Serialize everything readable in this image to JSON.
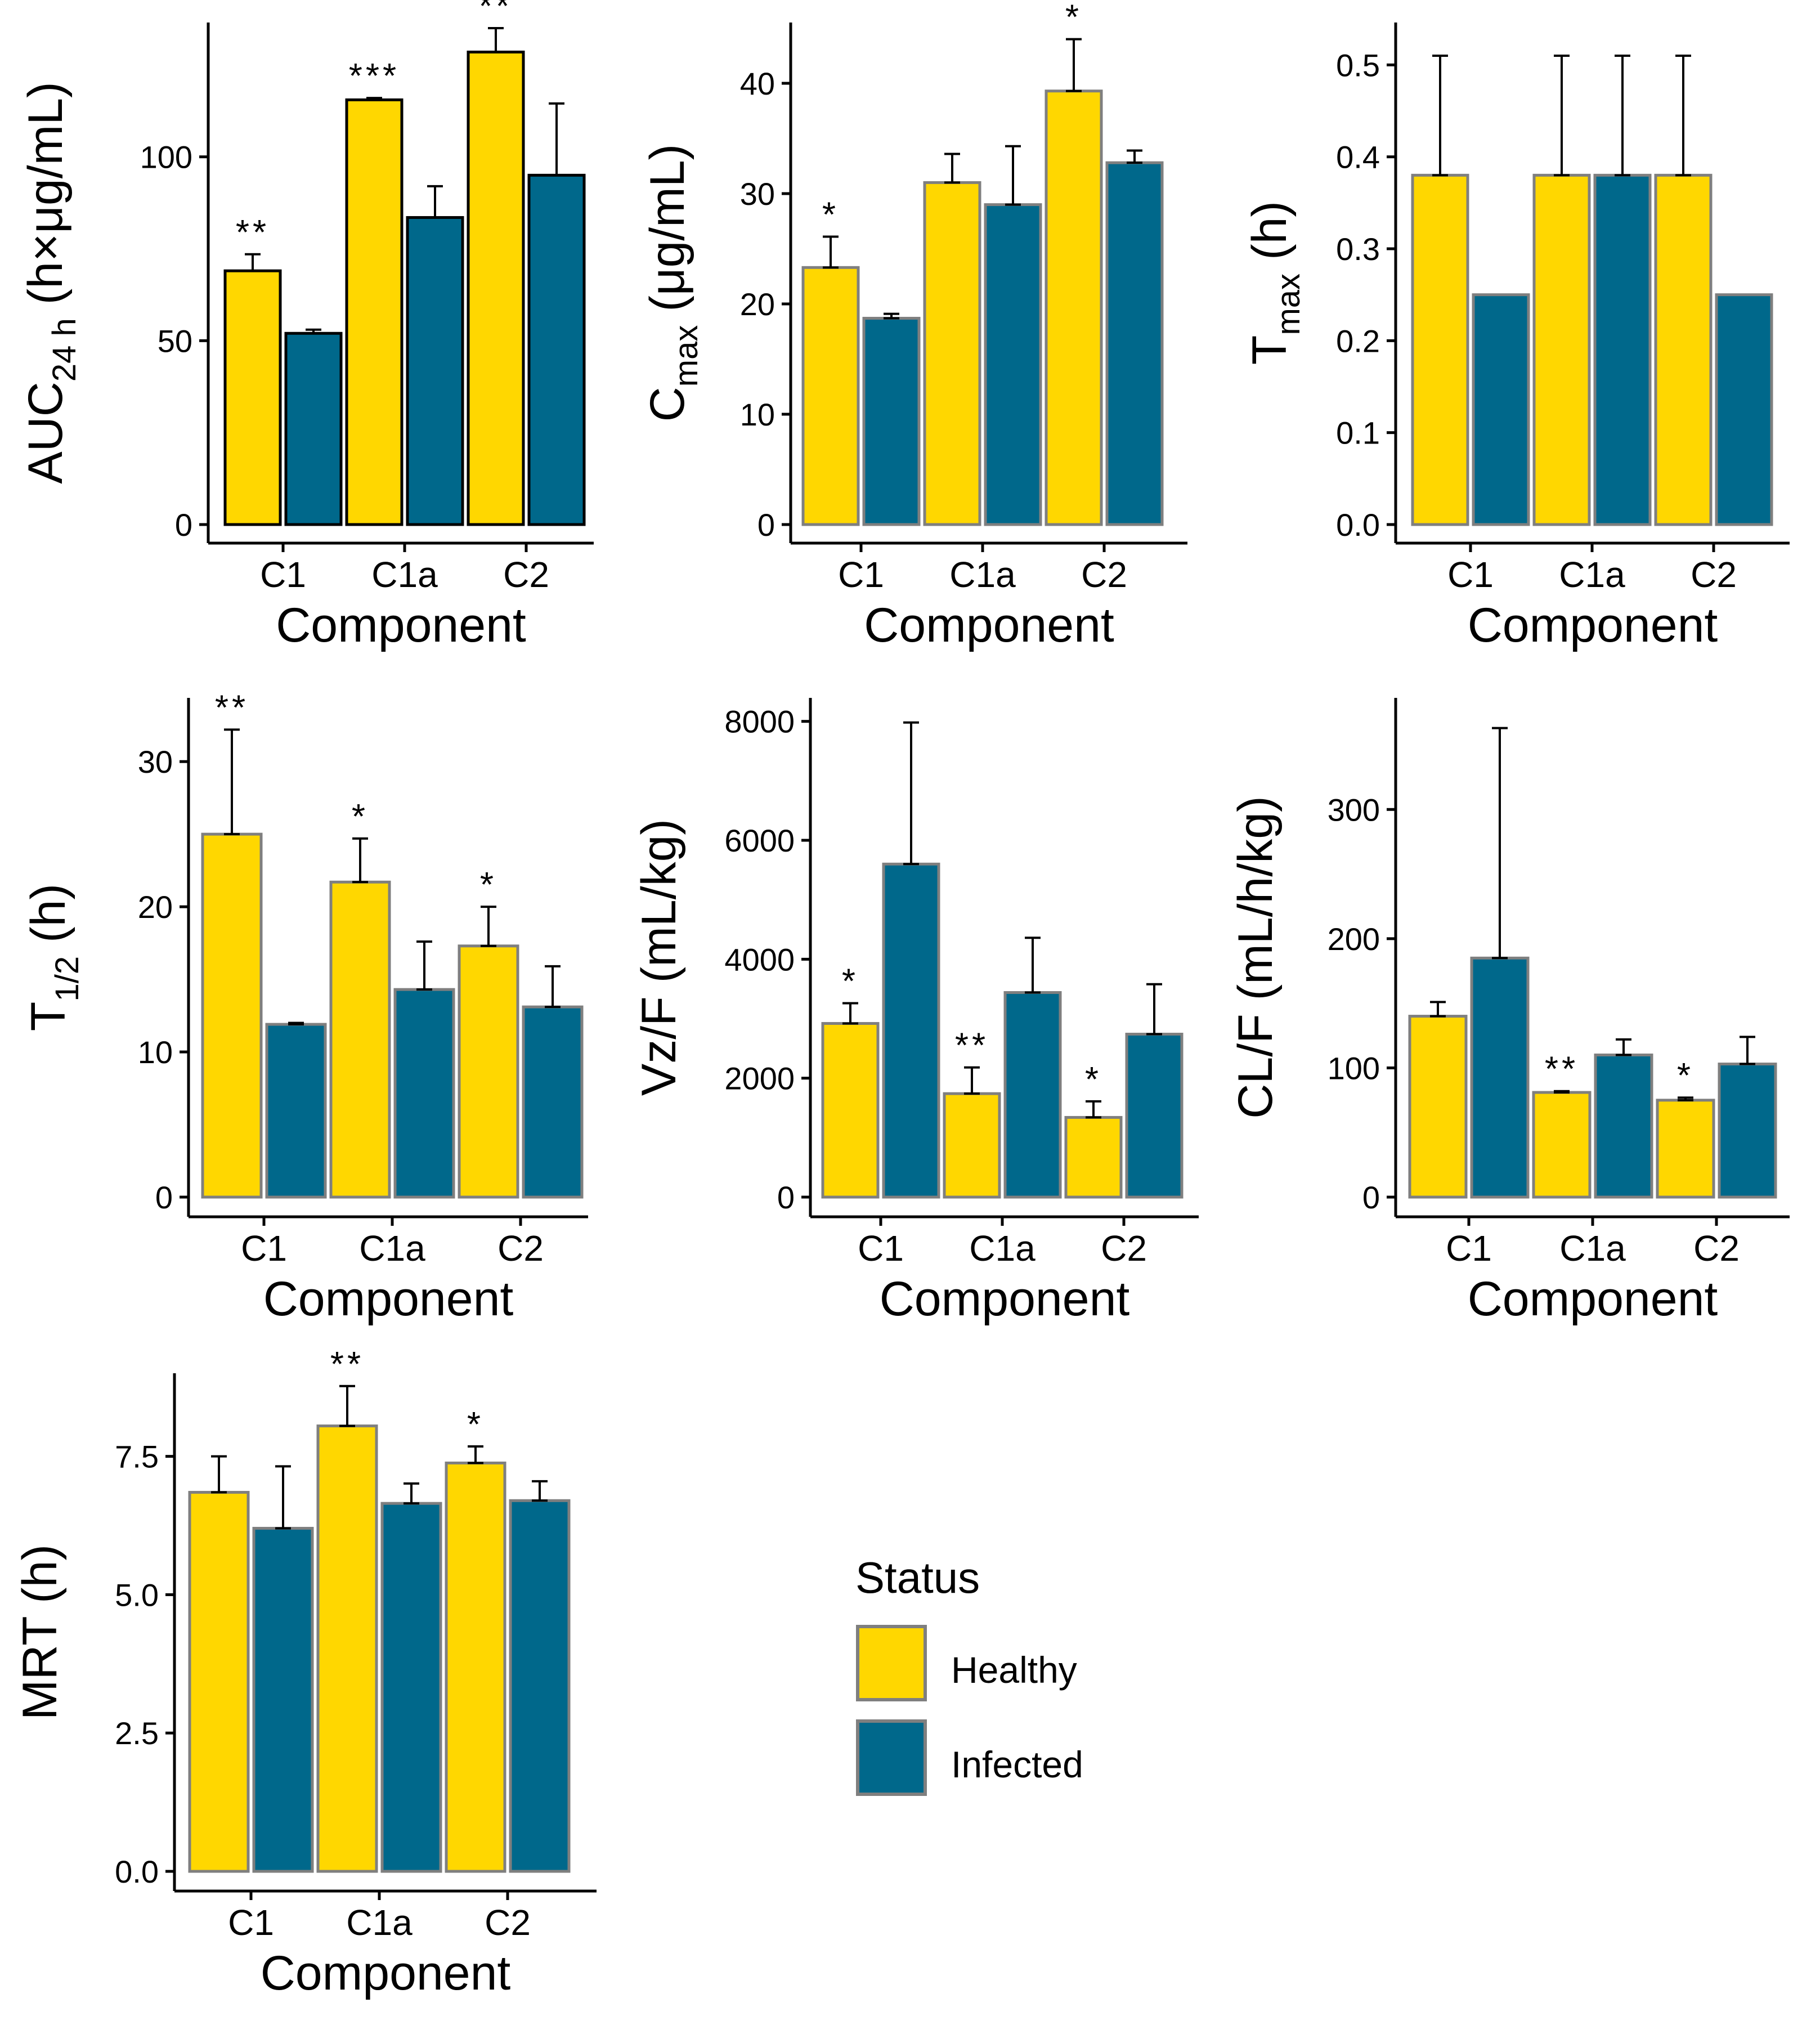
{
  "colors": {
    "healthy": "#FFD700",
    "infected": "#00688B",
    "bar_border": "#7F7F7F",
    "auc_border": "#000000"
  },
  "legend": {
    "title": "Status",
    "items": [
      {
        "label": "Healthy",
        "color": "#FFD700"
      },
      {
        "label": "Infected",
        "color": "#00688B"
      }
    ]
  },
  "chart_data": [
    {
      "id": "auc",
      "type": "bar",
      "ylabel": "AUC24 h (h×μg/mL)",
      "ylabel_parts": [
        "AUC",
        "24 h",
        "(h×μg/mL)"
      ],
      "xlabel": "Component",
      "categories": [
        "C1",
        "C1a",
        "C2"
      ],
      "ylim": [
        0,
        135
      ],
      "yticks": [
        0,
        50,
        100
      ],
      "ytick_labels": [
        "0",
        "50",
        "100"
      ],
      "series": [
        {
          "name": "Healthy",
          "values": [
            69,
            115.5,
            128.5
          ],
          "errors": [
            4.5,
            0.5,
            6.5
          ],
          "sig": [
            "**",
            "***",
            "**"
          ]
        },
        {
          "name": "Infected",
          "values": [
            52,
            83.5,
            95
          ],
          "errors": [
            1,
            8.5,
            19.5
          ],
          "sig": [
            "",
            "",
            ""
          ]
        }
      ]
    },
    {
      "id": "cmax",
      "type": "bar",
      "ylabel": "Cmax (μg/mL)",
      "ylabel_parts": [
        "C",
        "max",
        "(μg/mL)"
      ],
      "xlabel": "Component",
      "categories": [
        "C1",
        "C1a",
        "C2"
      ],
      "ylim": [
        0,
        45
      ],
      "yticks": [
        0,
        10,
        20,
        30,
        40
      ],
      "ytick_labels": [
        "0",
        "10",
        "20",
        "30",
        "40"
      ],
      "series": [
        {
          "name": "Healthy",
          "values": [
            23.3,
            31,
            39.3
          ],
          "errors": [
            2.8,
            2.6,
            4.7
          ],
          "sig": [
            "*",
            "",
            "*"
          ]
        },
        {
          "name": "Infected",
          "values": [
            18.7,
            29,
            32.8
          ],
          "errors": [
            0.4,
            5.3,
            1.1
          ],
          "sig": [
            "",
            "",
            ""
          ]
        }
      ]
    },
    {
      "id": "tmax",
      "type": "bar",
      "ylabel": "Tmax (h)",
      "ylabel_parts": [
        "T",
        "max",
        "(h)"
      ],
      "xlabel": "Component",
      "categories": [
        "C1",
        "C1a",
        "C2"
      ],
      "ylim": [
        0,
        0.54
      ],
      "yticks": [
        0,
        0.1,
        0.2,
        0.3,
        0.4,
        0.5
      ],
      "ytick_labels": [
        "0.0",
        "0.1",
        "0.2",
        "0.3",
        "0.4",
        "0.5"
      ],
      "series": [
        {
          "name": "Healthy",
          "values": [
            0.38,
            0.38,
            0.38
          ],
          "errors": [
            0.13,
            0.13,
            0.13
          ],
          "sig": [
            "",
            "",
            ""
          ]
        },
        {
          "name": "Infected",
          "values": [
            0.25,
            0.38,
            0.25
          ],
          "errors": [
            0,
            0.13,
            0
          ],
          "sig": [
            "",
            "",
            ""
          ]
        }
      ]
    },
    {
      "id": "thalf",
      "type": "bar",
      "ylabel": "T1/2 (h)",
      "ylabel_parts": [
        "T",
        "1/2",
        "(h)"
      ],
      "xlabel": "Component",
      "categories": [
        "C1",
        "C1a",
        "C2"
      ],
      "ylim": [
        0,
        34
      ],
      "yticks": [
        0,
        10,
        20,
        30
      ],
      "ytick_labels": [
        "0",
        "10",
        "20",
        "30"
      ],
      "series": [
        {
          "name": "Healthy",
          "values": [
            25,
            21.7,
            17.3
          ],
          "errors": [
            7.2,
            3,
            2.7
          ],
          "sig": [
            "**",
            "*",
            "*"
          ]
        },
        {
          "name": "Infected",
          "values": [
            11.9,
            14.3,
            13.1
          ],
          "errors": [
            0.1,
            3.3,
            2.8
          ],
          "sig": [
            "",
            "",
            ""
          ]
        }
      ]
    },
    {
      "id": "vzf",
      "type": "bar",
      "ylabel": "Vz/F (mL/kg)",
      "ylabel_parts": [
        "Vz/F (mL/kg)",
        "",
        ""
      ],
      "xlabel": "Component",
      "categories": [
        "C1",
        "C1a",
        "C2"
      ],
      "ylim": [
        0,
        8300
      ],
      "yticks": [
        0,
        2000,
        4000,
        6000,
        8000
      ],
      "ytick_labels": [
        "0",
        "2000",
        "4000",
        "6000",
        "8000"
      ],
      "series": [
        {
          "name": "Healthy",
          "values": [
            2920,
            1740,
            1340
          ],
          "errors": [
            340,
            440,
            270
          ],
          "sig": [
            "*",
            "**",
            "*"
          ]
        },
        {
          "name": "Infected",
          "values": [
            5600,
            3440,
            2740
          ],
          "errors": [
            2380,
            920,
            840
          ],
          "sig": [
            "",
            "",
            ""
          ]
        }
      ]
    },
    {
      "id": "clf",
      "type": "bar",
      "ylabel": "CL/F (mL/h/kg)",
      "ylabel_parts": [
        "CL/F (mL/h/kg)",
        "",
        ""
      ],
      "xlabel": "Component",
      "categories": [
        "C1",
        "C1a",
        "C2"
      ],
      "ylim": [
        0,
        382
      ],
      "yticks": [
        0,
        100,
        200,
        300
      ],
      "ytick_labels": [
        "0",
        "100",
        "200",
        "300"
      ],
      "series": [
        {
          "name": "Healthy",
          "values": [
            140,
            81,
            75
          ],
          "errors": [
            11,
            1,
            2
          ],
          "sig": [
            "",
            "**",
            "*"
          ]
        },
        {
          "name": "Infected",
          "values": [
            185,
            110,
            103
          ],
          "errors": [
            178,
            12,
            21
          ],
          "sig": [
            "",
            "",
            ""
          ]
        }
      ]
    },
    {
      "id": "mrt",
      "type": "bar",
      "ylabel": "MRT (h)",
      "ylabel_parts": [
        "MRT (h)",
        "",
        ""
      ],
      "xlabel": "Component",
      "categories": [
        "C1",
        "C1a",
        "C2"
      ],
      "ylim": [
        0,
        8.9
      ],
      "yticks": [
        0,
        2.5,
        5,
        7.5
      ],
      "ytick_labels": [
        "0.0",
        "2.5",
        "5.0",
        "7.5"
      ],
      "series": [
        {
          "name": "Healthy",
          "values": [
            6.85,
            8.05,
            7.38
          ],
          "errors": [
            0.65,
            0.72,
            0.3
          ],
          "sig": [
            "",
            "**",
            "*"
          ]
        },
        {
          "name": "Infected",
          "values": [
            6.2,
            6.65,
            6.7
          ],
          "errors": [
            1.12,
            0.36,
            0.35
          ],
          "sig": [
            "",
            "",
            ""
          ]
        }
      ]
    }
  ]
}
